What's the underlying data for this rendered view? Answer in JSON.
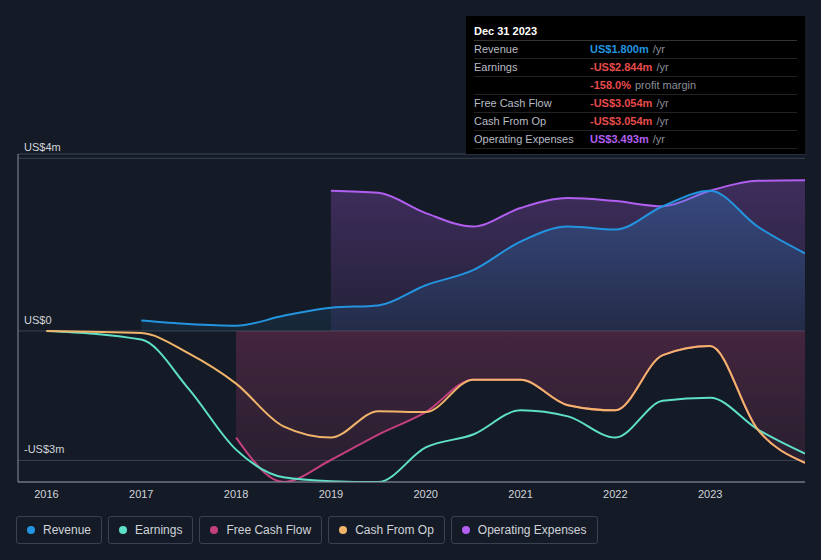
{
  "chart_data": {
    "type": "area",
    "x": [
      2016,
      2017,
      2017.5,
      2018,
      2018.5,
      2019,
      2019.5,
      2020,
      2020.5,
      2021,
      2021.5,
      2022,
      2022.5,
      2023,
      2023.5,
      2024
    ],
    "xlim": [
      2015.7,
      2024
    ],
    "xticks": [
      2016,
      2017,
      2018,
      2019,
      2020,
      2021,
      2022,
      2023
    ],
    "ylim": [
      -3.5,
      4.1
    ],
    "yticks": [
      {
        "value": 4,
        "label": "US$4m"
      },
      {
        "value": 0,
        "label": "US$0"
      },
      {
        "value": -3,
        "label": "-US$3m"
      }
    ],
    "grid": true,
    "legend": "bottom",
    "series": [
      {
        "name": "Operating Expenses",
        "type": "area",
        "color": "#b15ff0",
        "values": [
          null,
          null,
          null,
          null,
          null,
          3.25,
          3.2,
          2.73,
          2.42,
          2.85,
          3.08,
          3.01,
          2.89,
          3.25,
          3.48,
          3.493
        ]
      },
      {
        "name": "Revenue",
        "type": "area",
        "color": "#2394df",
        "values": [
          null,
          0.24,
          0.16,
          0.12,
          0.35,
          0.54,
          0.59,
          1.06,
          1.41,
          2.07,
          2.42,
          2.35,
          2.89,
          3.25,
          2.42,
          1.8
        ]
      },
      {
        "name": "Free Cash Flow",
        "type": "area",
        "color": "#c3407c",
        "values": [
          null,
          null,
          null,
          -2.47,
          -3.5,
          -2.99,
          -2.4,
          -1.88,
          -1.13,
          -1.13,
          -1.72,
          -1.84,
          -0.56,
          -0.35,
          -2.28,
          -3.054
        ]
      },
      {
        "name": "Earnings",
        "type": "line",
        "color": "#5ee0c8",
        "values": [
          0,
          -0.2,
          -1.34,
          -2.75,
          -3.39,
          -3.48,
          -3.5,
          -2.7,
          -2.4,
          -1.84,
          -1.98,
          -2.47,
          -1.62,
          -1.55,
          -2.28,
          -2.844
        ]
      },
      {
        "name": "Cash From Op",
        "type": "line",
        "color": "#f0b46a",
        "values": [
          0,
          -0.05,
          -0.52,
          -1.22,
          -2.21,
          -2.47,
          -1.86,
          -1.88,
          -1.13,
          -1.13,
          -1.72,
          -1.84,
          -0.56,
          -0.35,
          -2.28,
          -3.054
        ]
      }
    ],
    "legend_order": [
      "Revenue",
      "Earnings",
      "Free Cash Flow",
      "Cash From Op",
      "Operating Expenses"
    ],
    "info_box": {
      "title": "Dec 31 2023",
      "rows": [
        {
          "label": "Revenue",
          "value": "US$1.800m",
          "unit": "/yr",
          "color": "#2394df"
        },
        {
          "label": "Earnings",
          "value": "-US$2.844m",
          "unit": "/yr",
          "color": "#e64c4c"
        },
        {
          "value": "-158.0%",
          "unit": "profit margin",
          "color": "#e64c4c"
        },
        {
          "label": "Free Cash Flow",
          "value": "-US$3.054m",
          "unit": "/yr",
          "color": "#e64c4c"
        },
        {
          "label": "Cash From Op",
          "value": "-US$3.054m",
          "unit": "/yr",
          "color": "#e64c4c"
        },
        {
          "label": "Operating Expenses",
          "value": "US$3.493m",
          "unit": "/yr",
          "color": "#b15ff0"
        }
      ]
    }
  }
}
